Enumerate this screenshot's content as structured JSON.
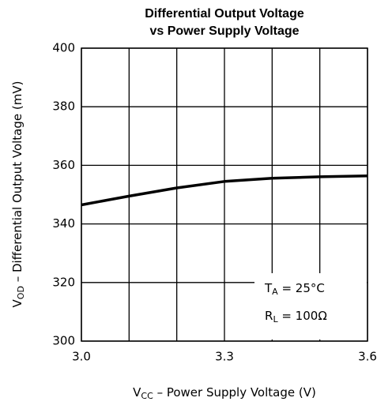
{
  "chart_data": {
    "type": "line",
    "title": [
      "Differential Output Voltage",
      "vs Power Supply Voltage"
    ],
    "x_label": {
      "symbol": "V",
      "subscript": "CC",
      "text": " – Power Supply Voltage (V)"
    },
    "y_label": {
      "symbol": "V",
      "subscript": "OD",
      "text": " – Differential Output Voltage (mV)"
    },
    "annotations": [
      {
        "symbol": "T",
        "subscript": "A",
        "text": " = 25°C"
      },
      {
        "symbol": "R",
        "subscript": "L",
        "text": " = 100Ω"
      }
    ],
    "x": [
      3.0,
      3.1,
      3.2,
      3.3,
      3.4,
      3.5,
      3.6
    ],
    "series": [
      {
        "name": "VOD",
        "color": "#000000",
        "values": [
          346.5,
          349.5,
          352.3,
          354.5,
          355.6,
          356.1,
          356.4
        ]
      }
    ],
    "xlim": [
      3.0,
      3.6
    ],
    "xticks": [
      {
        "value": 3,
        "label": "3.0"
      },
      3.3,
      3.6
    ],
    "xgrid": [
      3.1,
      3.2,
      3.4,
      3.5
    ],
    "ylim": [
      300,
      400
    ],
    "yticks": [
      300,
      320,
      340,
      360,
      380,
      400
    ],
    "grid": true
  }
}
